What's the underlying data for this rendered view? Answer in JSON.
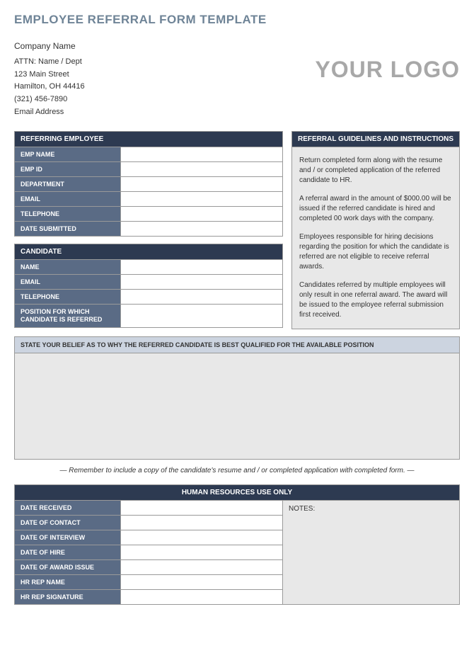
{
  "title": "EMPLOYEE REFERRAL FORM TEMPLATE",
  "company": {
    "name": "Company Name",
    "attn": "ATTN: Name / Dept",
    "street": "123 Main Street",
    "city_line": "Hamilton, OH  44416",
    "phone": "(321) 456-7890",
    "email": "Email Address"
  },
  "logo_text": "YOUR LOGO",
  "referring": {
    "header": "REFERRING EMPLOYEE",
    "fields": {
      "emp_name": {
        "label": "EMP NAME",
        "value": ""
      },
      "emp_id": {
        "label": "EMP ID",
        "value": ""
      },
      "department": {
        "label": "DEPARTMENT",
        "value": ""
      },
      "email": {
        "label": "EMAIL",
        "value": ""
      },
      "telephone": {
        "label": "TELEPHONE",
        "value": ""
      },
      "date_submitted": {
        "label": "DATE SUBMITTED",
        "value": ""
      }
    }
  },
  "candidate": {
    "header": "CANDIDATE",
    "fields": {
      "name": {
        "label": "NAME",
        "value": ""
      },
      "email": {
        "label": "EMAIL",
        "value": ""
      },
      "telephone": {
        "label": "TELEPHONE",
        "value": ""
      },
      "position": {
        "label": "POSITION FOR WHICH CANDIDATE IS REFERRED",
        "value": ""
      }
    }
  },
  "guidelines": {
    "header": "REFERRAL GUIDELINES AND INSTRUCTIONS",
    "p1": "Return completed form along with the resume and / or completed application of the referred candidate to HR.",
    "p2": "A referral award in the amount of $000.00 will be issued if the referred candidate is hired and completed 00 work days with the company.",
    "p3": "Employees responsible for hiring decisions regarding the position for which the candidate is referred are not eligible to receive referral awards.",
    "p4": "Candidates referred by multiple employees will only result in one referral award.  The award will be issued to the employee referral submission first received."
  },
  "belief": {
    "header": "STATE YOUR BELIEF AS TO WHY THE REFERRED CANDIDATE IS BEST QUALIFIED FOR THE AVAILABLE POSITION",
    "value": ""
  },
  "reminder": "— Remember to include a copy of the candidate's resume and / or completed application with completed form. —",
  "hr": {
    "header": "HUMAN RESOURCES USE ONLY",
    "notes_label": "NOTES:",
    "fields": {
      "date_received": {
        "label": "DATE RECEIVED",
        "value": ""
      },
      "date_contact": {
        "label": "DATE OF CONTACT",
        "value": ""
      },
      "date_interview": {
        "label": "DATE OF INTERVIEW",
        "value": ""
      },
      "date_hire": {
        "label": "DATE OF HIRE",
        "value": ""
      },
      "date_award": {
        "label": "DATE OF AWARD ISSUE",
        "value": ""
      },
      "rep_name": {
        "label": "HR REP NAME",
        "value": ""
      },
      "rep_sig": {
        "label": "HR REP SIGNATURE",
        "value": ""
      }
    }
  },
  "colors": {
    "title": "#6f8497",
    "header_bg": "#2d3a51",
    "label_bg": "#5a6b85",
    "light_bg": "#e8e8e8",
    "belief_bg": "#ccd4e0",
    "logo": "#a8a8a8",
    "border": "#999999"
  }
}
